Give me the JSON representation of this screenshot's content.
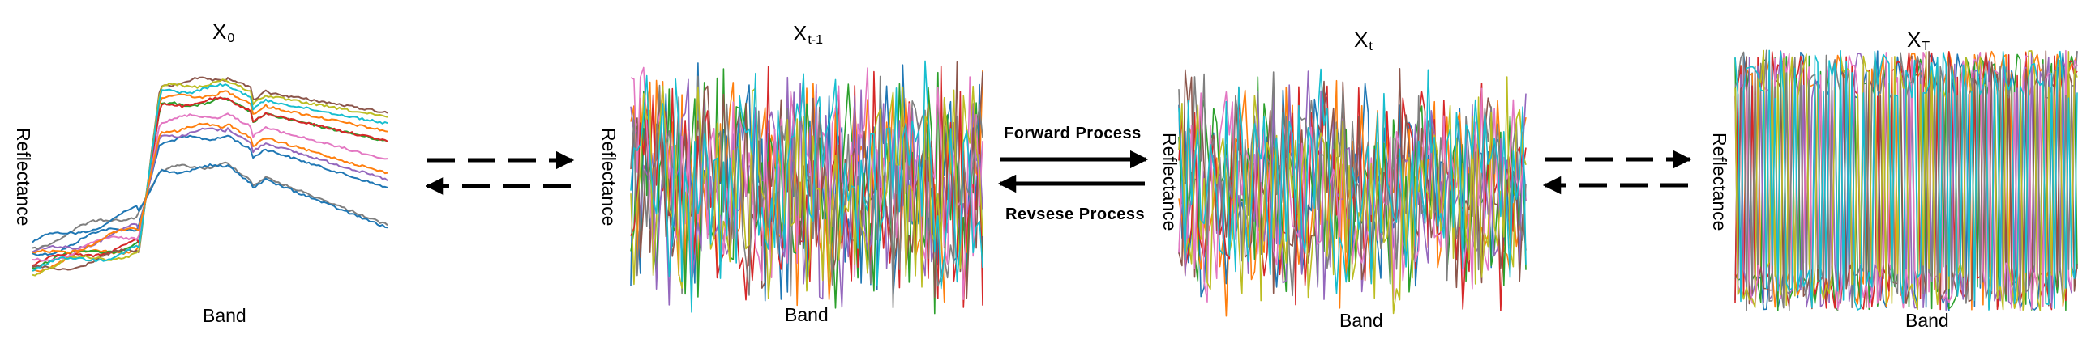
{
  "panels": [
    {
      "id": "x0",
      "title_main": "X",
      "title_sub": "0",
      "xlabel": "Band",
      "ylabel": "Reflectance"
    },
    {
      "id": "xt1",
      "title_main": "X",
      "title_sub": "t-1",
      "xlabel": "Band",
      "ylabel": "Reflectance"
    },
    {
      "id": "xt",
      "title_main": "X",
      "title_sub": "t",
      "xlabel": "Band",
      "ylabel": "Reflectance"
    },
    {
      "id": "xT",
      "title_main": "X",
      "title_sub": "T",
      "xlabel": "Band",
      "ylabel": "Reflectance"
    }
  ],
  "process": {
    "forward_label": "Forward  Process",
    "reverse_label": "Revsese  Process"
  },
  "colors": [
    "#1f77b4",
    "#ff7f0e",
    "#2ca02c",
    "#d62728",
    "#9467bd",
    "#8c564b",
    "#e377c2",
    "#7f7f7f",
    "#bcbd22",
    "#17becf"
  ]
}
